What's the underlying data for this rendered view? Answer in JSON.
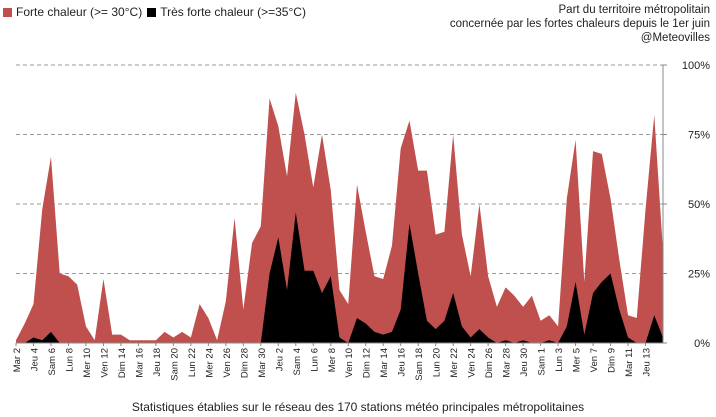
{
  "chart_data": {
    "type": "area",
    "title_lines": [
      "Part du territoire métropolitain",
      "concernée par les fortes chaleurs depuis le 1er juin",
      "@Meteovilles"
    ],
    "footer": "Statistiques établies sur le réseau des 170 stations météo principales métropolitaines",
    "ylim": [
      0,
      100
    ],
    "yticks": [
      0,
      25,
      50,
      75,
      100
    ],
    "ytick_labels": [
      "0%",
      "25%",
      "50%",
      "75%",
      "100%"
    ],
    "grid": "horizontal dashed",
    "legend_position": "top-left",
    "x_labels": [
      "Mar 2",
      "Jeu 4",
      "Sam 6",
      "Lun 8",
      "Mer 10",
      "Ven 12",
      "Dim 14",
      "Mar 16",
      "Jeu 18",
      "Sam 20",
      "Lun 22",
      "Mer 24",
      "Ven 26",
      "Dim 28",
      "Mar 30",
      "Jeu 2",
      "Sam 4",
      "Lun 6",
      "Mer 8",
      "Ven 10",
      "Dim 12",
      "Mar 14",
      "Jeu 16",
      "Sam 18",
      "Lun 20",
      "Mer 22",
      "Ven 24",
      "Dim 26",
      "Mar 28",
      "Jeu 30",
      "Sam 1",
      "Lun 3",
      "Mer 5",
      "Ven 7",
      "Dim 9",
      "Mar 11",
      "Jeu 13"
    ],
    "series": [
      {
        "name": "Forte chaleur (>= 30°C)",
        "color": "#c0504d",
        "values": [
          1,
          7,
          14,
          48,
          67,
          25,
          24,
          21,
          6,
          1,
          23,
          3,
          3,
          1,
          1,
          1,
          1,
          4,
          2,
          4,
          2,
          14,
          9,
          1,
          15,
          45,
          12,
          36,
          42,
          88,
          78,
          60,
          90,
          75,
          56,
          75,
          55,
          19,
          14,
          57,
          40,
          24,
          23,
          35,
          70,
          80,
          62,
          62,
          39,
          40,
          75,
          39,
          24,
          50,
          24,
          13,
          20,
          17,
          13,
          17,
          8,
          10,
          6,
          52,
          73,
          22,
          69,
          68,
          52,
          30,
          10,
          9,
          48,
          82,
          33
        ]
      },
      {
        "name": "Très forte chaleur (>=35°C)",
        "color": "#000000",
        "values": [
          0,
          0,
          2,
          1,
          4,
          0,
          0,
          0,
          0,
          0,
          0,
          0,
          0,
          0,
          0,
          0,
          0,
          0,
          0,
          0,
          0,
          0,
          0,
          0,
          0,
          0,
          0,
          0,
          0,
          25,
          38,
          19,
          47,
          26,
          26,
          18,
          24,
          2,
          0,
          9,
          7,
          4,
          3,
          4,
          12,
          43,
          25,
          8,
          5,
          8,
          18,
          6,
          2,
          5,
          2,
          0,
          1,
          0,
          1,
          0,
          0,
          1,
          0,
          6,
          22,
          3,
          18,
          22,
          25,
          12,
          2,
          0,
          0,
          10,
          2
        ]
      }
    ]
  }
}
